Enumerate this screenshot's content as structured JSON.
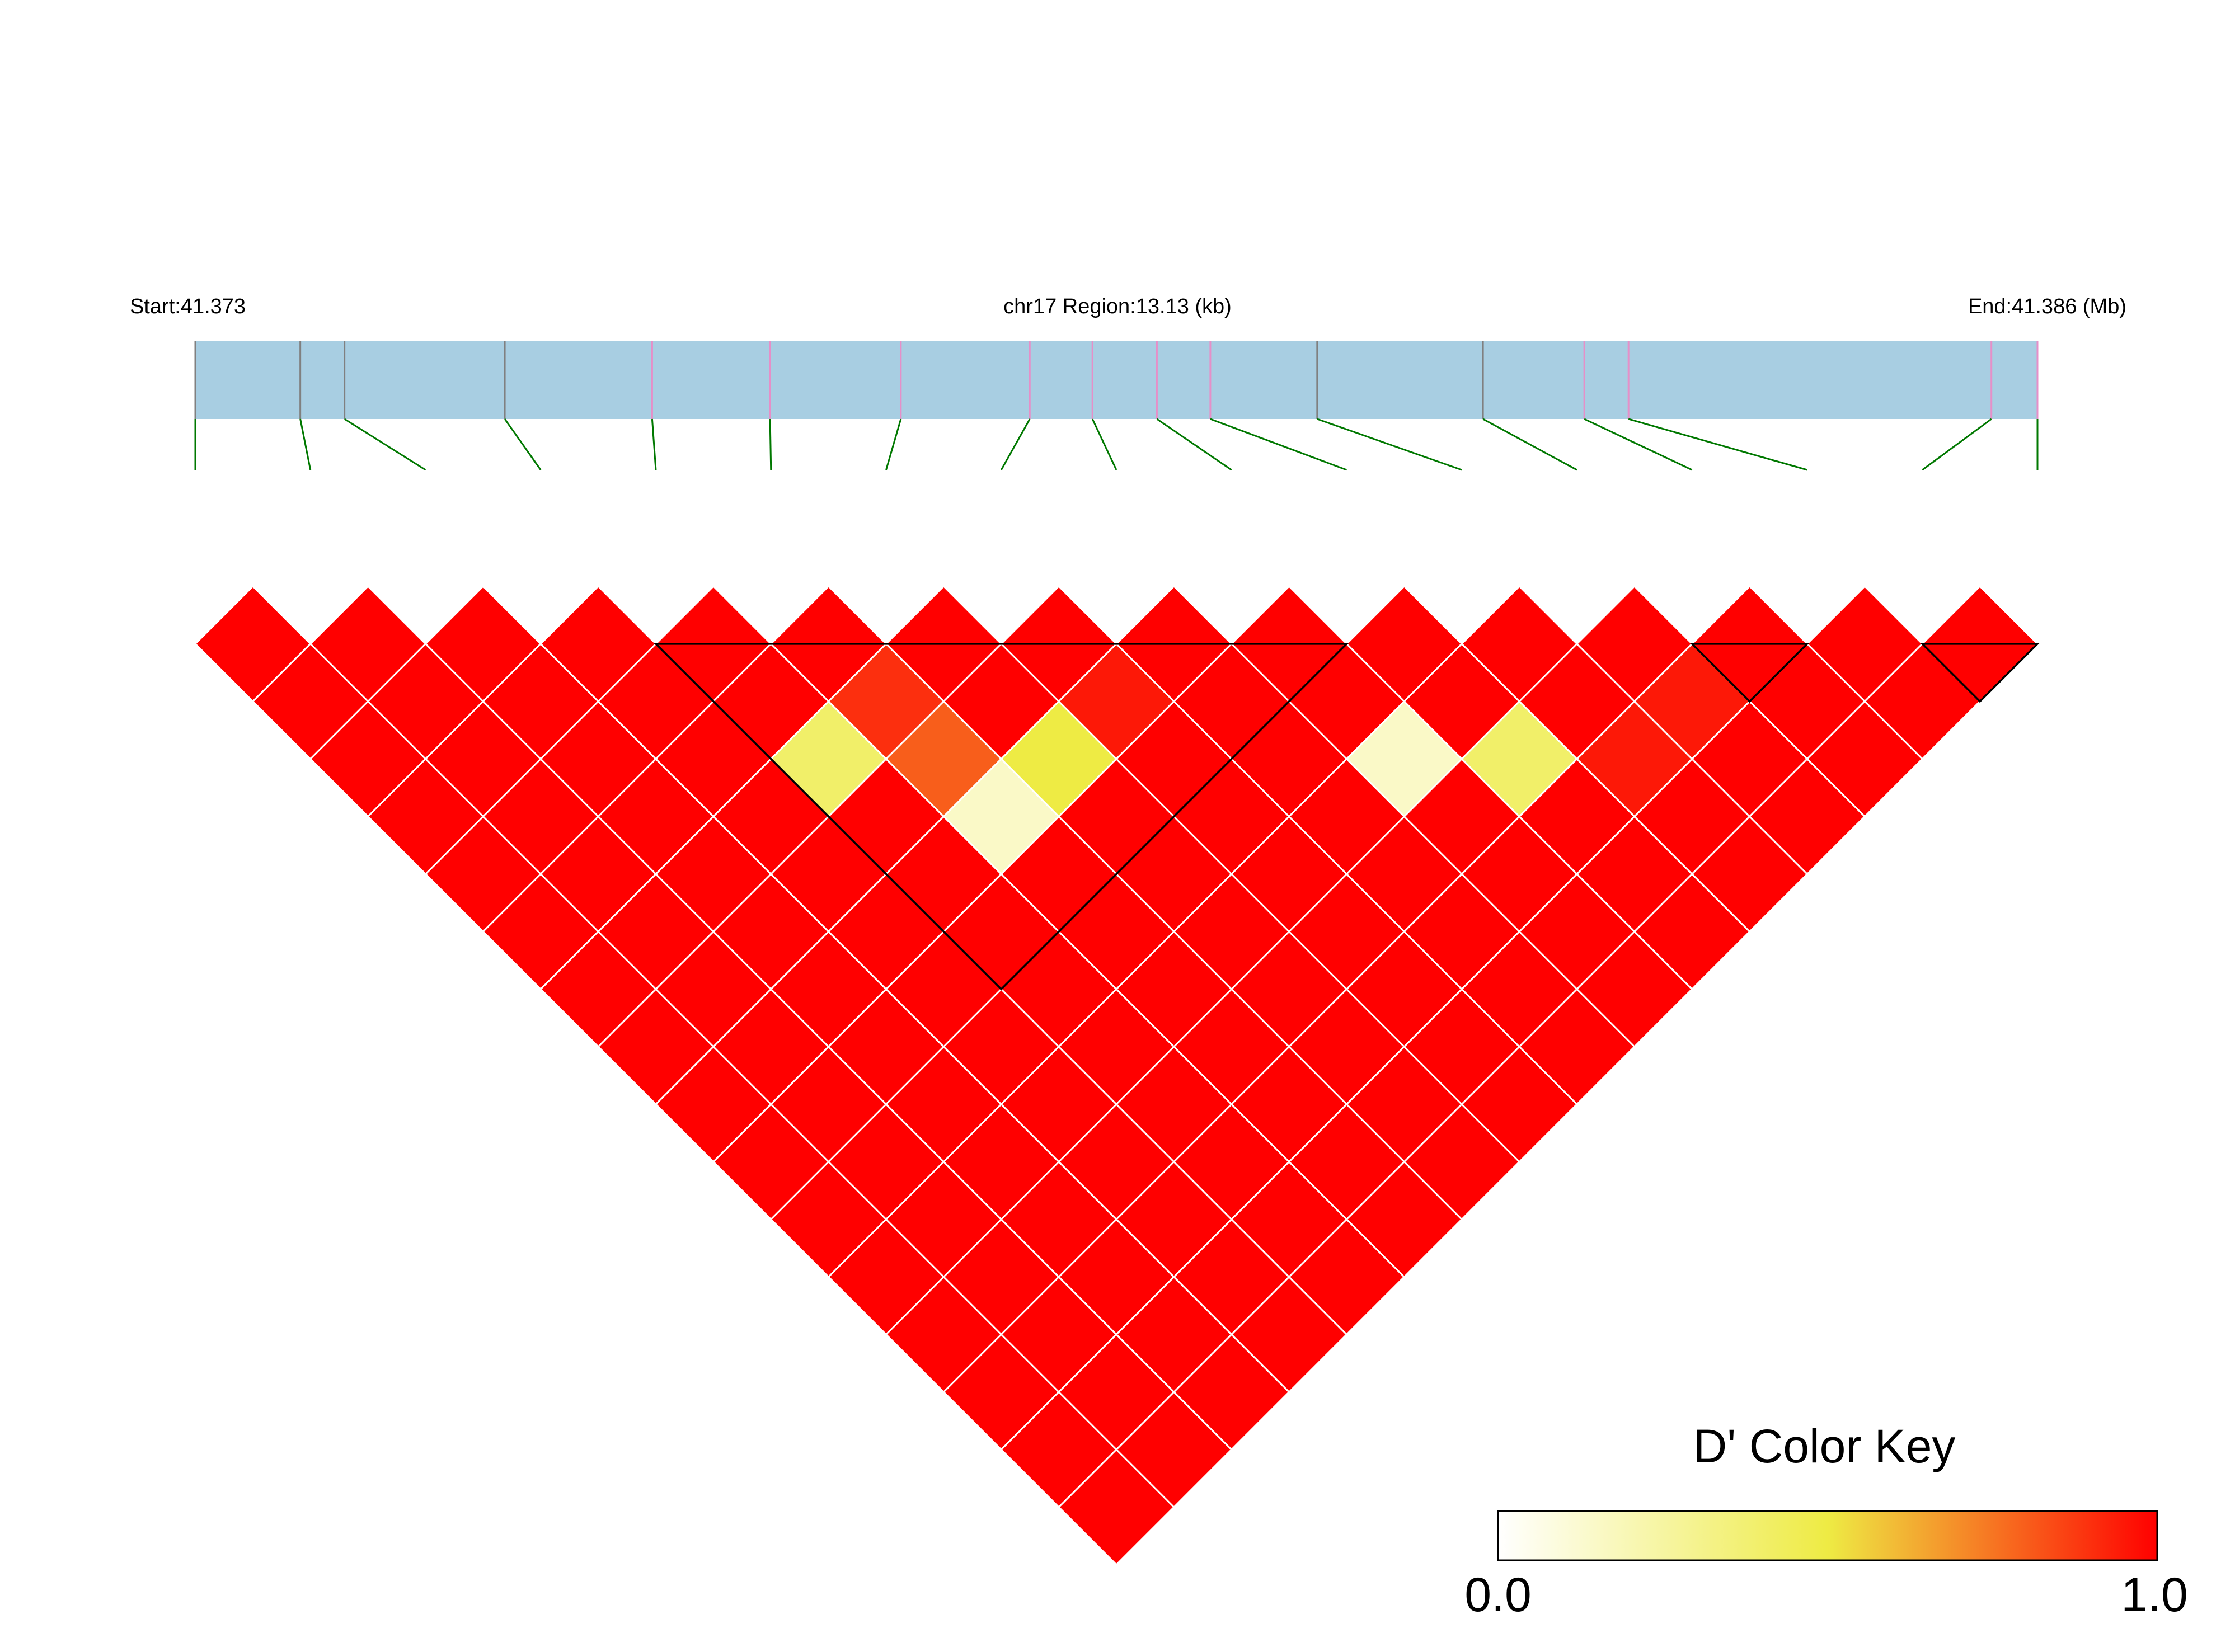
{
  "chart_data": {
    "type": "heatmap",
    "header": {
      "start_label": "Start:41.373",
      "region_label": "chr17 Region:13.13 (kb)",
      "end_label": "End:41.386 (Mb)"
    },
    "snp_count": 17,
    "snp_positions_relative": [
      0.0,
      0.057,
      0.081,
      0.168,
      0.248,
      0.312,
      0.383,
      0.453,
      0.487,
      0.522,
      0.551,
      0.609,
      0.699,
      0.754,
      0.778,
      0.975,
      1.0
    ],
    "snp_mark_colors": [
      "#808080",
      "#808080",
      "#808080",
      "#808080",
      "#e68fc8",
      "#e68fc8",
      "#e68fc8",
      "#e68fc8",
      "#e68fc8",
      "#e68fc8",
      "#e68fc8",
      "#808080",
      "#808080",
      "#e68fc8",
      "#e68fc8",
      "#e68fc8",
      "#e68fc8"
    ],
    "dprime_exceptions": [
      {
        "i": 5,
        "j": 7,
        "value": 0.9
      },
      {
        "i": 7,
        "j": 9,
        "value": 0.95
      },
      {
        "i": 4,
        "j": 7,
        "value": 0.4
      },
      {
        "i": 5,
        "j": 8,
        "value": 0.8
      },
      {
        "i": 11,
        "j": 14,
        "value": 0.95
      },
      {
        "i": 12,
        "j": 14,
        "value": 0.95
      },
      {
        "i": 9,
        "j": 12,
        "value": 0.15
      },
      {
        "i": 5,
        "j": 9,
        "value": 0.15
      },
      {
        "i": 6,
        "j": 9,
        "value": 0.5
      },
      {
        "i": 10,
        "j": 13,
        "value": 0.4
      }
    ],
    "dprime_default": 1.0,
    "blocks": [
      {
        "start": 4,
        "end": 10
      },
      {
        "start": 13,
        "end": 14
      },
      {
        "start": 15,
        "end": 16
      }
    ],
    "colors": {
      "track_fill": "#a8cee2",
      "connector": "#007800",
      "cell_border": "#ffffff",
      "block_outline": "#000000",
      "key_low": "#ffffff",
      "key_mid": "#eeeb44",
      "key_high": "#ff0000"
    },
    "color_key": {
      "title": "D' Color Key",
      "min_label": "0.0",
      "max_label": "1.0"
    }
  }
}
